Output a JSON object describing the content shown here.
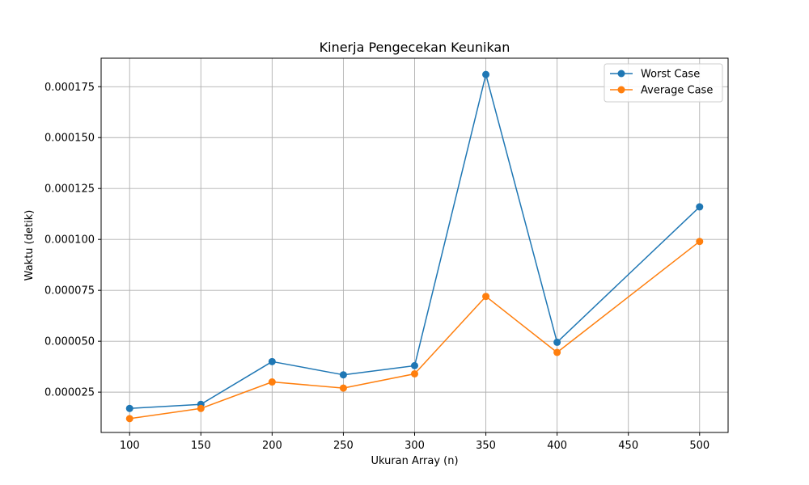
{
  "chart_data": {
    "type": "line",
    "title": "Kinerja Pengecekan Keunikan",
    "xlabel": "Ukuran Array (n)",
    "ylabel": "Waktu (detik)",
    "x": [
      100,
      150,
      200,
      250,
      300,
      350,
      400,
      500
    ],
    "xlim": [
      80,
      520
    ],
    "ylim": [
      5.2e-06,
      0.000189
    ],
    "xticks": [
      100,
      150,
      200,
      250,
      300,
      350,
      400,
      450,
      500
    ],
    "xtick_labels": [
      "100",
      "150",
      "200",
      "250",
      "300",
      "350",
      "400",
      "450",
      "500"
    ],
    "yticks": [
      2.5e-05,
      5e-05,
      7.5e-05,
      0.0001,
      0.000125,
      0.00015,
      0.000175
    ],
    "ytick_labels": [
      "0.000025",
      "0.000050",
      "0.000075",
      "0.000100",
      "0.000125",
      "0.000150",
      "0.000175"
    ],
    "grid": true,
    "legend_position": "top-right",
    "series": [
      {
        "name": "Worst Case",
        "color": "#1f77b4",
        "values": [
          1.7e-05,
          1.9e-05,
          4e-05,
          3.35e-05,
          3.8e-05,
          0.000181,
          4.95e-05,
          0.000116
        ]
      },
      {
        "name": "Average Case",
        "color": "#ff7f0e",
        "values": [
          1.2e-05,
          1.7e-05,
          3e-05,
          2.7e-05,
          3.4e-05,
          7.2e-05,
          4.45e-05,
          9.9e-05
        ]
      }
    ]
  }
}
